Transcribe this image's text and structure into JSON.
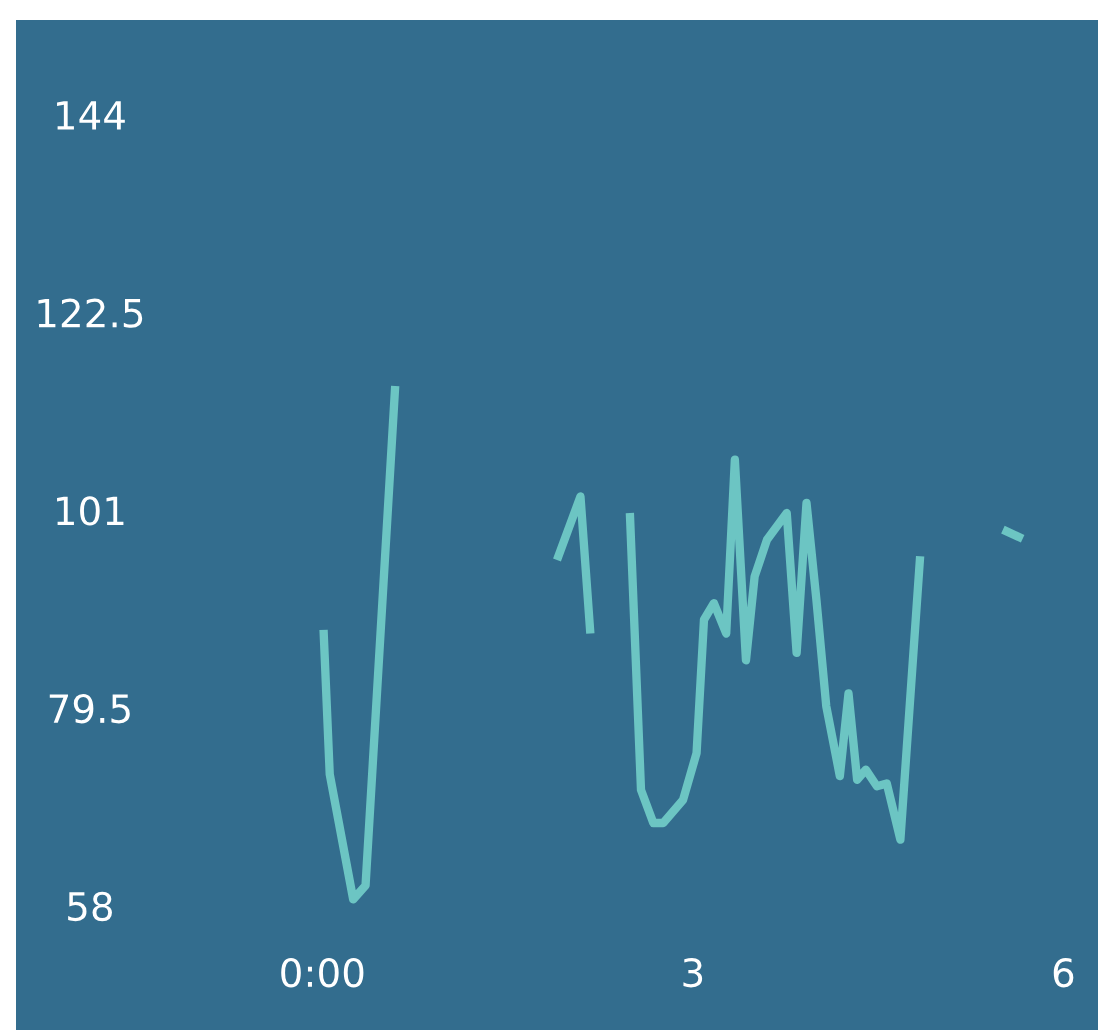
{
  "chart_data": {
    "type": "line",
    "x": [
      0.01,
      0.06,
      0.25,
      0.35,
      0.59,
      1.2,
      1.9,
      2.09,
      2.17,
      2.3,
      2.49,
      2.58,
      2.68,
      2.76,
      2.92,
      3.03,
      3.09,
      3.17,
      3.27,
      3.34,
      3.43,
      3.5,
      3.6,
      3.76,
      3.84,
      3.92,
      4.0,
      4.08,
      4.19,
      4.26,
      4.33,
      4.4,
      4.49,
      4.57,
      4.68,
      4.84,
      5.2,
      5.51,
      5.67
    ],
    "series": [
      {
        "color": "#6cc5c3",
        "values": [
          88.0,
          72.3,
          58.7,
          60.2,
          114.5,
          null,
          95.6,
          102.5,
          87.6,
          null,
          100.7,
          70.6,
          67.0,
          67.0,
          69.5,
          74.6,
          89.1,
          90.9,
          87.6,
          106.5,
          84.7,
          93.8,
          97.8,
          100.7,
          85.5,
          101.8,
          91.3,
          79.7,
          72.1,
          81.1,
          71.7,
          72.8,
          71.0,
          71.3,
          65.2,
          96.0,
          null,
          98.9,
          97.9
        ]
      }
    ],
    "xlim": [
      -2.48,
      6.28
    ],
    "ylim": [
      44.5,
      154.3
    ],
    "xticks": [
      {
        "value": 0,
        "label": "0:00"
      },
      3,
      6
    ],
    "yticks": [
      58,
      79.5,
      101,
      122.5,
      144
    ],
    "grid": false,
    "marker": "none",
    "line_style": "solid"
  }
}
